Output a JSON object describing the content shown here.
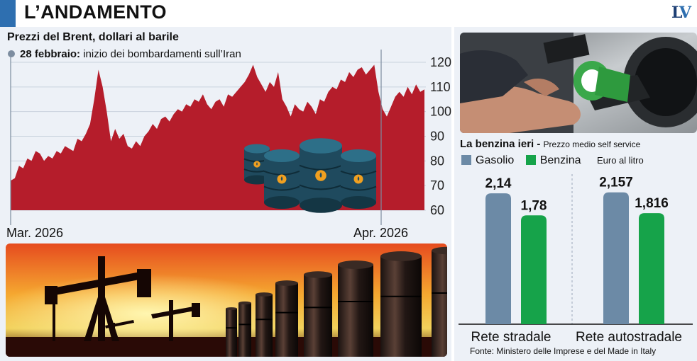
{
  "header": {
    "title": "L’ANDAMENTO",
    "logo": "LV"
  },
  "chart_data": [
    {
      "type": "area",
      "title": "Prezzi del Brent, dollari al barile",
      "annotation": {
        "label": "28 febbraio:",
        "text": "inizio dei bombardamenti sull’Iran"
      },
      "x_labels": [
        "Mar. 2026",
        "Apr. 2026"
      ],
      "ylim": [
        60,
        124
      ],
      "y_ticks": [
        60,
        70,
        80,
        90,
        100,
        110,
        120
      ],
      "y_axis_side": "right",
      "grid": true,
      "color": "#b51d2b",
      "values": [
        72,
        73,
        78,
        77,
        81,
        80,
        84,
        83,
        80,
        82,
        81,
        84,
        83,
        86,
        85,
        84,
        89,
        88,
        91,
        95,
        105,
        117,
        110,
        100,
        88,
        93,
        89,
        91,
        86,
        85,
        88,
        86,
        90,
        92,
        95,
        93,
        97,
        98,
        96,
        99,
        101,
        100,
        103,
        102,
        105,
        104,
        107,
        103,
        101,
        104,
        105,
        102,
        107,
        106,
        108,
        110,
        112,
        115,
        119,
        114,
        111,
        108,
        112,
        110,
        116,
        105,
        102,
        98,
        103,
        101,
        100,
        104,
        102,
        99,
        105,
        104,
        108,
        110,
        109,
        113,
        112,
        116,
        114,
        117,
        118,
        115,
        117,
        119,
        108,
        101,
        98,
        102,
        106,
        108,
        106,
        110,
        107,
        111,
        108,
        109
      ]
    },
    {
      "type": "bar",
      "title": "La benzina ieri",
      "subtitle": "Prezzo medio self service",
      "unit": "Euro al litro",
      "categories": [
        "Rete stradale",
        "Rete autostradale"
      ],
      "series": [
        {
          "name": "Gasolio",
          "color": "#6c8aa6",
          "values": [
            2.14,
            2.157
          ],
          "labels": [
            "2,14",
            "2,157"
          ]
        },
        {
          "name": "Benzina",
          "color": "#16a34a",
          "values": [
            1.78,
            1.816
          ],
          "labels": [
            "1,78",
            "1,816"
          ]
        }
      ],
      "ylim": [
        0,
        2.2
      ],
      "legend": "top-left",
      "source": "Fonte: Ministero delle Imprese e del Made in Italy"
    }
  ]
}
